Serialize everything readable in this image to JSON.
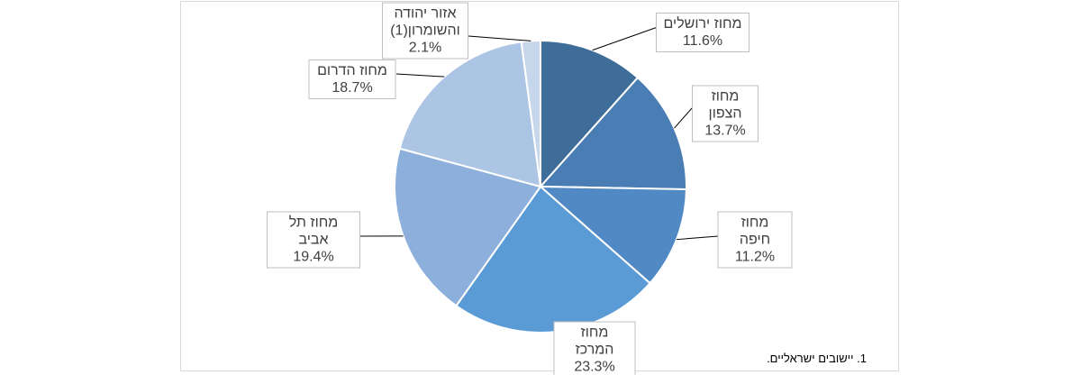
{
  "chart_data": {
    "type": "pie",
    "categories": [
      "מחוז ירושלים",
      "מחוז הצפון",
      "מחוז חיפה",
      "מחוז המרכז",
      "מחוז תל אביב",
      "מחוז הדרום",
      "אזור יהודה והשומרון(1)"
    ],
    "values": [
      11.6,
      13.7,
      11.2,
      23.3,
      19.4,
      18.7,
      2.1
    ],
    "value_labels": [
      "11.6%",
      "13.7%",
      "11.2%",
      "23.3%",
      "19.4%",
      "18.7%",
      "2.1%"
    ],
    "colors": [
      "#3f6d99",
      "#4a7db3",
      "#5089c4",
      "#5b9bd5",
      "#8cafdb",
      "#adc5e4",
      "#c6d7ec"
    ],
    "footnote": "1. יישובים ישראליים."
  }
}
